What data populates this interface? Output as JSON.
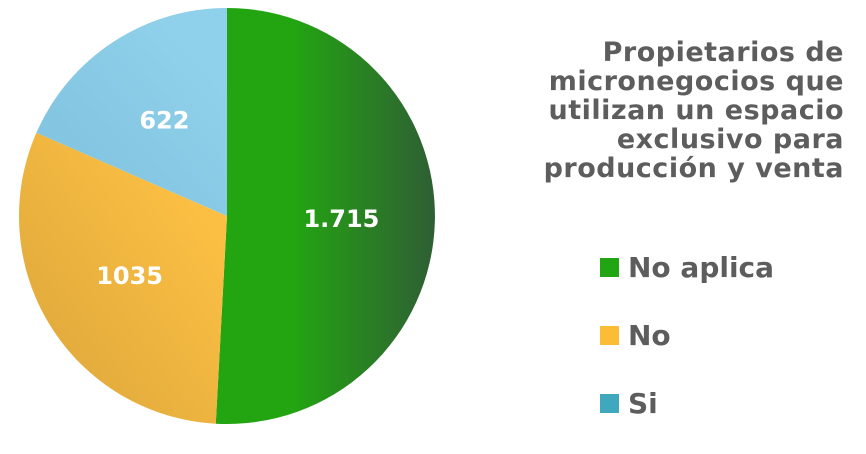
{
  "chart_data": {
    "type": "pie",
    "title": "Propietarios de micronegocios que utilizan un espacio exclusivo para producción y venta",
    "title_lines": [
      "Propietarios de",
      "micronegocios que",
      "utilizan un espacio",
      "exclusivo para",
      "producción y venta"
    ],
    "slices": [
      {
        "name": "No aplica",
        "value": 1715,
        "label": "1.715",
        "color": "#23a512",
        "gradient_end": "#2f5e34"
      },
      {
        "name": "No",
        "value": 1035,
        "label": "1035",
        "color": "#fbbf43",
        "gradient_end": "#d9a43a"
      },
      {
        "name": "Si",
        "value": 622,
        "label": "622",
        "color": "#8fd0ea",
        "gradient_end": "#7ec1de"
      }
    ],
    "legend": {
      "placement": "right",
      "entries": [
        {
          "label": "No aplica",
          "color": "#22a512"
        },
        {
          "label": "No",
          "color": "#fbbd35"
        },
        {
          "label": "Si",
          "color": "#3fa8bd"
        }
      ]
    },
    "start_angle": "top",
    "direction": "clockwise"
  }
}
